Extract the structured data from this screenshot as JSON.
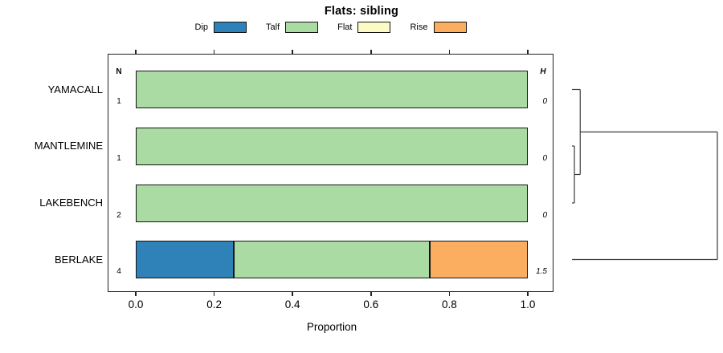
{
  "title": "Flats: sibling",
  "chart_data": {
    "type": "bar",
    "orientation": "horizontal",
    "stacked": true,
    "title": "Flats: sibling",
    "xlabel": "Proportion",
    "xlim": [
      0,
      1
    ],
    "x_ticks": [
      "0.0",
      "0.2",
      "0.4",
      "0.6",
      "0.8",
      "1.0"
    ],
    "x_tick_values": [
      0,
      0.2,
      0.4,
      0.6,
      0.8,
      1.0
    ],
    "grid": false,
    "legend_position": "top",
    "categories": [
      "YAMACALL",
      "MANTLEMINE",
      "LAKEBENCH",
      "BERLAKE"
    ],
    "series": [
      {
        "name": "Dip",
        "color": "#2e82b8",
        "values": [
          0,
          0,
          0,
          0.25
        ]
      },
      {
        "name": "Talf",
        "color": "#a9dba3",
        "values": [
          1,
          1,
          1,
          0.5
        ]
      },
      {
        "name": "Flat",
        "color": "#fbfbc6",
        "values": [
          0,
          0,
          0,
          0
        ]
      },
      {
        "name": "Rise",
        "color": "#fbad60",
        "values": [
          0,
          0,
          0,
          0.25
        ]
      }
    ],
    "n_column": {
      "header": "N",
      "values": [
        "1",
        "1",
        "2",
        "4"
      ]
    },
    "h_column": {
      "header": "H",
      "values": [
        "0",
        "0",
        "0",
        "1.5"
      ]
    }
  },
  "dendrogram": {
    "leaves": [
      "YAMACALL",
      "MANTLEMINE",
      "LAKEBENCH",
      "BERLAKE"
    ],
    "merges": [
      {
        "a": "MANTLEMINE",
        "b": "LAKEBENCH",
        "height": 0.025
      },
      {
        "a": "YAMACALL",
        "b": "m0",
        "height": 0.085
      },
      {
        "a": "m1",
        "b": "BERLAKE",
        "height": 1.5
      }
    ],
    "max_height": 1.5
  }
}
